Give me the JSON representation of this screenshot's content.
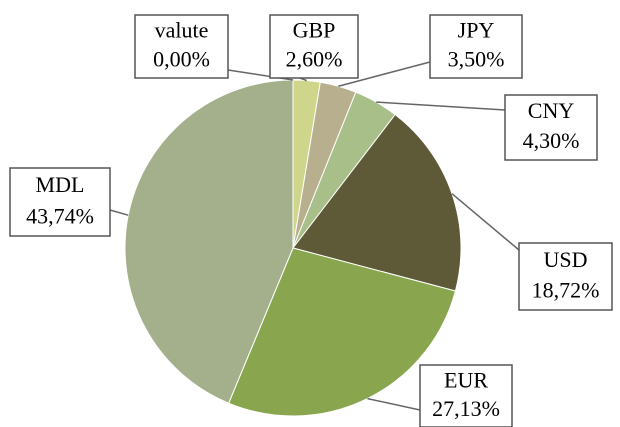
{
  "chart_data": {
    "type": "pie",
    "categories": [
      "valute",
      "GBP",
      "JPY",
      "CNY",
      "USD",
      "EUR",
      "MDL"
    ],
    "values": [
      0.0,
      2.6,
      3.5,
      4.3,
      18.72,
      27.13,
      43.74
    ],
    "value_labels": [
      "0,00%",
      "2,60%",
      "3,50%",
      "4,30%",
      "18,72%",
      "27,13%",
      "43,74%"
    ],
    "colors": [
      "#c9c9a0",
      "#cfd68b",
      "#b7af8d",
      "#a9bf8a",
      "#5e5a38",
      "#89a64f",
      "#a3b08b"
    ]
  }
}
